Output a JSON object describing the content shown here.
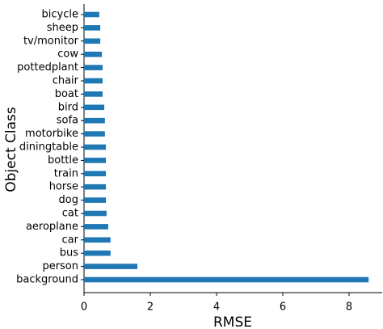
{
  "chart_data": {
    "type": "barh",
    "x_label": "RMSE",
    "y_label": "Object Class",
    "categories": [
      "bicycle",
      "sheep",
      "tv/monitor",
      "cow",
      "pottedplant",
      "chair",
      "boat",
      "bird",
      "sofa",
      "motorbike",
      "diningtable",
      "bottle",
      "train",
      "horse",
      "dog",
      "cat",
      "aeroplane",
      "car",
      "bus",
      "person",
      "background"
    ],
    "values": [
      0.46,
      0.49,
      0.49,
      0.54,
      0.56,
      0.56,
      0.56,
      0.61,
      0.63,
      0.63,
      0.66,
      0.66,
      0.66,
      0.66,
      0.66,
      0.68,
      0.73,
      0.8,
      0.8,
      1.61,
      8.59
    ],
    "color": "#1f77b4",
    "xlim": [
      0,
      9.0
    ],
    "xticks": [
      0,
      2,
      4,
      6,
      8
    ]
  }
}
